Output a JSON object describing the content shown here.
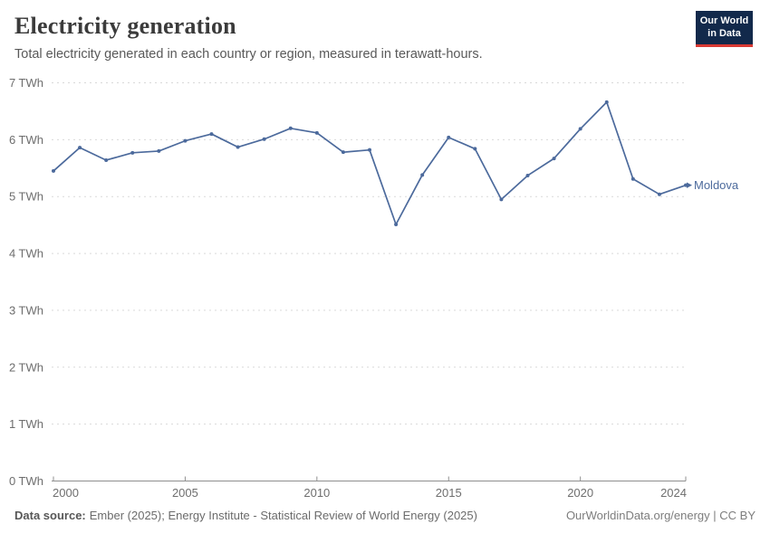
{
  "header": {
    "title": "Electricity generation",
    "subtitle": "Total electricity generated in each country or region, measured in terawatt-hours.",
    "logo": {
      "line1": "Our World",
      "line2": "in Data",
      "bg_color": "#12294B",
      "accent_color": "#D93A34"
    }
  },
  "chart_data": {
    "type": "line",
    "title": "Electricity generation",
    "unit": "TWh",
    "x": [
      2000,
      2001,
      2002,
      2003,
      2004,
      2005,
      2006,
      2007,
      2008,
      2009,
      2010,
      2011,
      2012,
      2013,
      2014,
      2015,
      2016,
      2017,
      2018,
      2019,
      2020,
      2021,
      2022,
      2023,
      2024
    ],
    "series": [
      {
        "name": "Moldova",
        "color": "#4C6A9C",
        "values": [
          5.45,
          5.86,
          5.64,
          5.77,
          5.8,
          5.98,
          6.1,
          5.87,
          6.01,
          6.2,
          6.12,
          5.78,
          5.82,
          4.51,
          5.38,
          6.04,
          5.84,
          4.95,
          5.37,
          5.67,
          6.19,
          6.66,
          5.31,
          5.04,
          5.2
        ]
      }
    ],
    "ylim": [
      0,
      7
    ],
    "ytick_step": 1,
    "ytick_format": "{v} TWh",
    "xticks": [
      2000,
      2005,
      2010,
      2015,
      2020,
      2024
    ],
    "grid": "horizontal-dashed",
    "legend_position": "end-of-line",
    "axis_color": "#8f8f8f",
    "grid_color": "#d9d9d9"
  },
  "footer": {
    "source_label": "Data source:",
    "source_text": "Ember (2025); Energy Institute - Statistical Review of World Energy (2025)",
    "right_text": "OurWorldinData.org/energy | CC BY"
  }
}
